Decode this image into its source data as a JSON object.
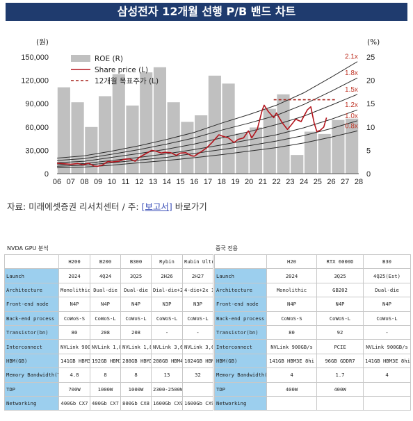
{
  "header": {
    "title": "삼성전자 12개월 선행 P/B 밴드 차트"
  },
  "chart_data": {
    "type": "line",
    "title": "삼성전자 12개월 선행 P/B 밴드 차트",
    "left_unit": "(원)",
    "right_unit": "(%)",
    "y_left": {
      "min": 0,
      "max": 150000,
      "ticks": [
        0,
        30000,
        60000,
        90000,
        120000,
        150000
      ],
      "tick_labels": [
        "0",
        "30,000",
        "60,000",
        "90,000",
        "120,000",
        "150,000"
      ]
    },
    "y_right": {
      "min": 0,
      "max": 25,
      "ticks": [
        0,
        5,
        10,
        15,
        20,
        25
      ],
      "tick_labels": [
        "0",
        "5",
        "10",
        "15",
        "20",
        "25"
      ]
    },
    "x_ticks": [
      "06",
      "07",
      "08",
      "09",
      "10",
      "11",
      "12",
      "13",
      "14",
      "15",
      "16",
      "17",
      "18",
      "19",
      "20",
      "21",
      "22",
      "23",
      "24",
      "25",
      "26",
      "27",
      "28"
    ],
    "x_range": [
      2006,
      2028
    ],
    "legend": {
      "position": "top-left",
      "roe": "ROE (R)",
      "price": "Share price (L)",
      "target": "12개월 목표주가 (L)"
    },
    "roe_bars": [
      {
        "year": 2006,
        "value": 18.5
      },
      {
        "year": 2007,
        "value": 15.3
      },
      {
        "year": 2008,
        "value": 10.0
      },
      {
        "year": 2009,
        "value": 16.6
      },
      {
        "year": 2010,
        "value": 21.3
      },
      {
        "year": 2011,
        "value": 14.6
      },
      {
        "year": 2012,
        "value": 21.7
      },
      {
        "year": 2013,
        "value": 22.8
      },
      {
        "year": 2014,
        "value": 15.3
      },
      {
        "year": 2015,
        "value": 11.1
      },
      {
        "year": 2016,
        "value": 12.5
      },
      {
        "year": 2017,
        "value": 21.0
      },
      {
        "year": 2018,
        "value": 19.3
      },
      {
        "year": 2019,
        "value": 8.6
      },
      {
        "year": 2020,
        "value": 9.9
      },
      {
        "year": 2021,
        "value": 13.9
      },
      {
        "year": 2022,
        "value": 17.0
      },
      {
        "year": 2023,
        "value": 4.0
      },
      {
        "year": 2024,
        "value": 9.0
      },
      {
        "year": 2025,
        "value": 8.5
      },
      {
        "year": 2026,
        "value": 11.5
      },
      {
        "year": 2027,
        "value": 11.8
      }
    ],
    "bands": [
      {
        "label": "2.1x",
        "points": [
          [
            2006,
            20000
          ],
          [
            2008,
            23000
          ],
          [
            2010,
            29000
          ],
          [
            2012,
            36000
          ],
          [
            2014,
            44000
          ],
          [
            2016,
            53000
          ],
          [
            2018,
            65000
          ],
          [
            2020,
            76000
          ],
          [
            2022,
            88000
          ],
          [
            2024,
            104000
          ],
          [
            2026,
            124000
          ],
          [
            2027.9,
            144000
          ]
        ]
      },
      {
        "label": "1.8x",
        "points": [
          [
            2006,
            17000
          ],
          [
            2008,
            19500
          ],
          [
            2010,
            25000
          ],
          [
            2012,
            31000
          ],
          [
            2014,
            38000
          ],
          [
            2016,
            46000
          ],
          [
            2018,
            56000
          ],
          [
            2020,
            65000
          ],
          [
            2022,
            75000
          ],
          [
            2024,
            89000
          ],
          [
            2026,
            106000
          ],
          [
            2027.9,
            123000
          ]
        ]
      },
      {
        "label": "1.5x",
        "points": [
          [
            2006,
            14000
          ],
          [
            2008,
            16000
          ],
          [
            2010,
            21000
          ],
          [
            2012,
            26000
          ],
          [
            2014,
            31500
          ],
          [
            2016,
            38000
          ],
          [
            2018,
            46000
          ],
          [
            2020,
            54000
          ],
          [
            2022,
            63000
          ],
          [
            2024,
            74000
          ],
          [
            2026,
            88000
          ],
          [
            2027.9,
            102000
          ]
        ]
      },
      {
        "label": "1.2x",
        "points": [
          [
            2006,
            11500
          ],
          [
            2008,
            13000
          ],
          [
            2010,
            17000
          ],
          [
            2012,
            21000
          ],
          [
            2014,
            25500
          ],
          [
            2016,
            31000
          ],
          [
            2018,
            37000
          ],
          [
            2020,
            43500
          ],
          [
            2022,
            50000
          ],
          [
            2024,
            59000
          ],
          [
            2026,
            70000
          ],
          [
            2027.9,
            82000
          ]
        ]
      },
      {
        "label": "1.0x",
        "points": [
          [
            2006,
            9500
          ],
          [
            2008,
            11000
          ],
          [
            2010,
            14000
          ],
          [
            2012,
            17500
          ],
          [
            2014,
            21000
          ],
          [
            2016,
            26000
          ],
          [
            2018,
            31000
          ],
          [
            2020,
            36000
          ],
          [
            2022,
            42000
          ],
          [
            2024,
            49000
          ],
          [
            2026,
            58000
          ],
          [
            2027.9,
            68000
          ]
        ]
      },
      {
        "label": "0.8x",
        "points": [
          [
            2006,
            7500
          ],
          [
            2008,
            8500
          ],
          [
            2010,
            11000
          ],
          [
            2012,
            14000
          ],
          [
            2014,
            17000
          ],
          [
            2016,
            20500
          ],
          [
            2018,
            24500
          ],
          [
            2020,
            29000
          ],
          [
            2022,
            33500
          ],
          [
            2024,
            39500
          ],
          [
            2026,
            47000
          ],
          [
            2027.9,
            55000
          ]
        ]
      }
    ],
    "price": [
      [
        2006.0,
        13500
      ],
      [
        2006.5,
        12800
      ],
      [
        2007.0,
        12000
      ],
      [
        2007.5,
        13000
      ],
      [
        2007.9,
        11500
      ],
      [
        2008.3,
        13500
      ],
      [
        2008.7,
        9800
      ],
      [
        2008.95,
        9500
      ],
      [
        2009.3,
        11000
      ],
      [
        2009.7,
        15500
      ],
      [
        2010.0,
        15000
      ],
      [
        2010.5,
        16000
      ],
      [
        2010.9,
        18500
      ],
      [
        2011.3,
        19000
      ],
      [
        2011.7,
        16000
      ],
      [
        2012.0,
        21000
      ],
      [
        2012.4,
        25000
      ],
      [
        2012.9,
        30000
      ],
      [
        2013.2,
        29000
      ],
      [
        2013.6,
        26500
      ],
      [
        2013.9,
        27500
      ],
      [
        2014.3,
        27000
      ],
      [
        2014.7,
        23500
      ],
      [
        2015.0,
        26500
      ],
      [
        2015.4,
        27000
      ],
      [
        2015.8,
        23000
      ],
      [
        2016.0,
        22500
      ],
      [
        2016.5,
        28000
      ],
      [
        2016.9,
        33000
      ],
      [
        2017.3,
        40000
      ],
      [
        2017.8,
        50000
      ],
      [
        2018.1,
        48000
      ],
      [
        2018.5,
        46000
      ],
      [
        2018.9,
        40000
      ],
      [
        2019.2,
        44000
      ],
      [
        2019.6,
        46000
      ],
      [
        2019.95,
        55000
      ],
      [
        2020.2,
        46000
      ],
      [
        2020.6,
        57000
      ],
      [
        2020.95,
        81000
      ],
      [
        2021.1,
        88000
      ],
      [
        2021.4,
        80000
      ],
      [
        2021.8,
        72000
      ],
      [
        2022.0,
        78000
      ],
      [
        2022.4,
        66000
      ],
      [
        2022.8,
        57000
      ],
      [
        2023.0,
        61000
      ],
      [
        2023.4,
        70000
      ],
      [
        2023.8,
        67000
      ],
      [
        2024.0,
        74000
      ],
      [
        2024.25,
        82000
      ],
      [
        2024.5,
        86000
      ],
      [
        2024.75,
        65000
      ],
      [
        2024.95,
        54000
      ],
      [
        2025.2,
        56000
      ],
      [
        2025.45,
        60000
      ],
      [
        2025.65,
        72000
      ]
    ],
    "target_price": {
      "start": 2021.8,
      "end": 2026.3,
      "value": 95000
    }
  },
  "source": {
    "prefix": "자료: 미래에셋증권 리서치센터 / 주: ",
    "link_label": "[보고서]",
    "suffix": " 바로가기"
  },
  "tables": {
    "nvda": {
      "caption": "NVDA GPU 분석",
      "columns": [
        "H200",
        "B200",
        "B300",
        "Rybin",
        "Rubin Ultra"
      ],
      "rows": [
        {
          "label": "Launch",
          "cells": [
            "2024",
            "4Q24",
            "3Q25",
            "2H26",
            "2H27"
          ]
        },
        {
          "label": "Architecture",
          "cells": [
            "Monolithic",
            "Dual-die",
            "Dual-die",
            "Dial-die+2xI/O",
            "4-die+2x I/O"
          ]
        },
        {
          "label": "Front-end node",
          "cells": [
            "N4P",
            "N4P",
            "N4P",
            "N3P",
            "N3P"
          ]
        },
        {
          "label": "Back-end process",
          "cells": [
            "CoWoS-S",
            "CoWoS-L",
            "CoWoS-L",
            "CoWoS-L",
            "CoWoS-L"
          ]
        },
        {
          "label": "Transistor(bn)",
          "cells": [
            "80",
            "208",
            "208",
            "-",
            "-"
          ]
        },
        {
          "label": "Interconnect",
          "cells": [
            "NVLink 900GB/s",
            "NVLink 1,800GB/s",
            "NVLink 1,800GB/s",
            "NVLink 3,600GB/s",
            "NVLink 3,600GB/s"
          ]
        },
        {
          "label": "HBM(GB)",
          "cells": [
            "141GB HBM3E",
            "192GB HBM3E",
            "288GB HBM3E 12 hi x 8",
            "288GB HBM4 12 hi x 8",
            "1024GB HBM4E"
          ]
        },
        {
          "label": "Memory Bandwidth(TB/s)",
          "cells": [
            "4.8",
            "8",
            "8",
            "13",
            "32"
          ]
        },
        {
          "label": "TDP",
          "cells": [
            "700W",
            "1000W",
            "1000W",
            "2300-2500W",
            ""
          ]
        },
        {
          "label": "Networking",
          "cells": [
            "400Gb CX7",
            "400Gb CX7",
            "800Gb CX8",
            "1600Gb CX9",
            "1600Gb CX9"
          ]
        }
      ]
    },
    "china": {
      "caption": "중국 전용",
      "columns": [
        "H20",
        "RTX 6000D",
        "B30"
      ],
      "rows": [
        {
          "label": "Launch",
          "cells": [
            "2024",
            "3Q25",
            "4Q25(Est)"
          ]
        },
        {
          "label": "Architecture",
          "cells": [
            "Monolithic",
            "GB202",
            "Dual-die"
          ]
        },
        {
          "label": "Front-end node",
          "cells": [
            "N4P",
            "N4P",
            "N4P"
          ]
        },
        {
          "label": "Back-end process",
          "cells": [
            "CoWoS-S",
            "CoWoS-L",
            "CoWoS-L"
          ]
        },
        {
          "label": "Transistor(bn)",
          "cells": [
            "80",
            "92",
            "-"
          ]
        },
        {
          "label": "Interconnect",
          "cells": [
            "NVLink 900GB/s",
            "PCIE",
            "NVLink 900GB/s"
          ]
        },
        {
          "label": "HBM(GB)",
          "cells": [
            "141GB HBM3E 8hi",
            "96GB GDDR7",
            "141GB HBM3E 8hi"
          ]
        },
        {
          "label": "Memory Bandwidth(TB/s)",
          "cells": [
            "4",
            "1.7",
            "4"
          ]
        },
        {
          "label": "TDP",
          "cells": [
            "400W",
            "400W",
            ""
          ]
        },
        {
          "label": "Networking",
          "cells": [
            "",
            "",
            ""
          ]
        }
      ]
    }
  }
}
